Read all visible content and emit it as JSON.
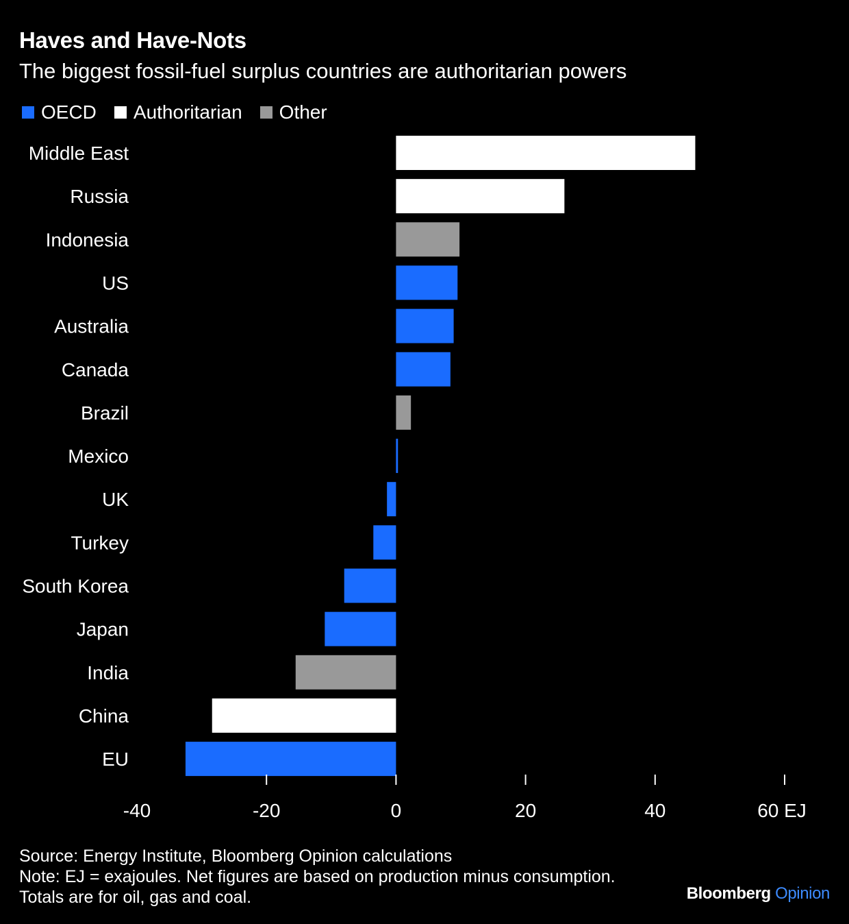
{
  "header": {
    "title": "Haves and Have-Nots",
    "subtitle": "The biggest fossil-fuel surplus countries are authoritarian powers"
  },
  "legend": [
    {
      "label": "OECD",
      "color": "#1a6cff"
    },
    {
      "label": "Authoritarian",
      "color": "#ffffff"
    },
    {
      "label": "Other",
      "color": "#999999"
    }
  ],
  "chart_data": {
    "type": "bar",
    "orientation": "horizontal",
    "categories": [
      "Middle East",
      "Russia",
      "Indonesia",
      "US",
      "Australia",
      "Canada",
      "Brazil",
      "Mexico",
      "UK",
      "Turkey",
      "South Korea",
      "Japan",
      "India",
      "China",
      "EU"
    ],
    "values": [
      46.2,
      26.0,
      9.8,
      9.5,
      8.9,
      8.4,
      2.3,
      0.3,
      -1.4,
      -3.5,
      -8.0,
      -11.0,
      -15.5,
      -28.4,
      -32.5
    ],
    "groups": [
      "Authoritarian",
      "Authoritarian",
      "Other",
      "OECD",
      "OECD",
      "OECD",
      "Other",
      "OECD",
      "OECD",
      "OECD",
      "OECD",
      "OECD",
      "Other",
      "Authoritarian",
      "OECD"
    ],
    "xlim": [
      -40,
      60
    ],
    "xticks": [
      -40,
      -20,
      0,
      20,
      40,
      60
    ],
    "xtick_labels": [
      "-40",
      "-20",
      "0",
      "20",
      "40",
      "60 EJ"
    ],
    "grid": false,
    "legend_position": "top-left"
  },
  "footer": {
    "source": "Source: Energy Institute, Bloomberg Opinion calculations",
    "note": "Note: EJ = exajoules. Net figures are based on production minus consumption.",
    "note2": "Totals are for oil, gas and coal."
  },
  "brand": {
    "name": "Bloomberg",
    "section": "Opinion",
    "section_color": "#3d8bff"
  }
}
